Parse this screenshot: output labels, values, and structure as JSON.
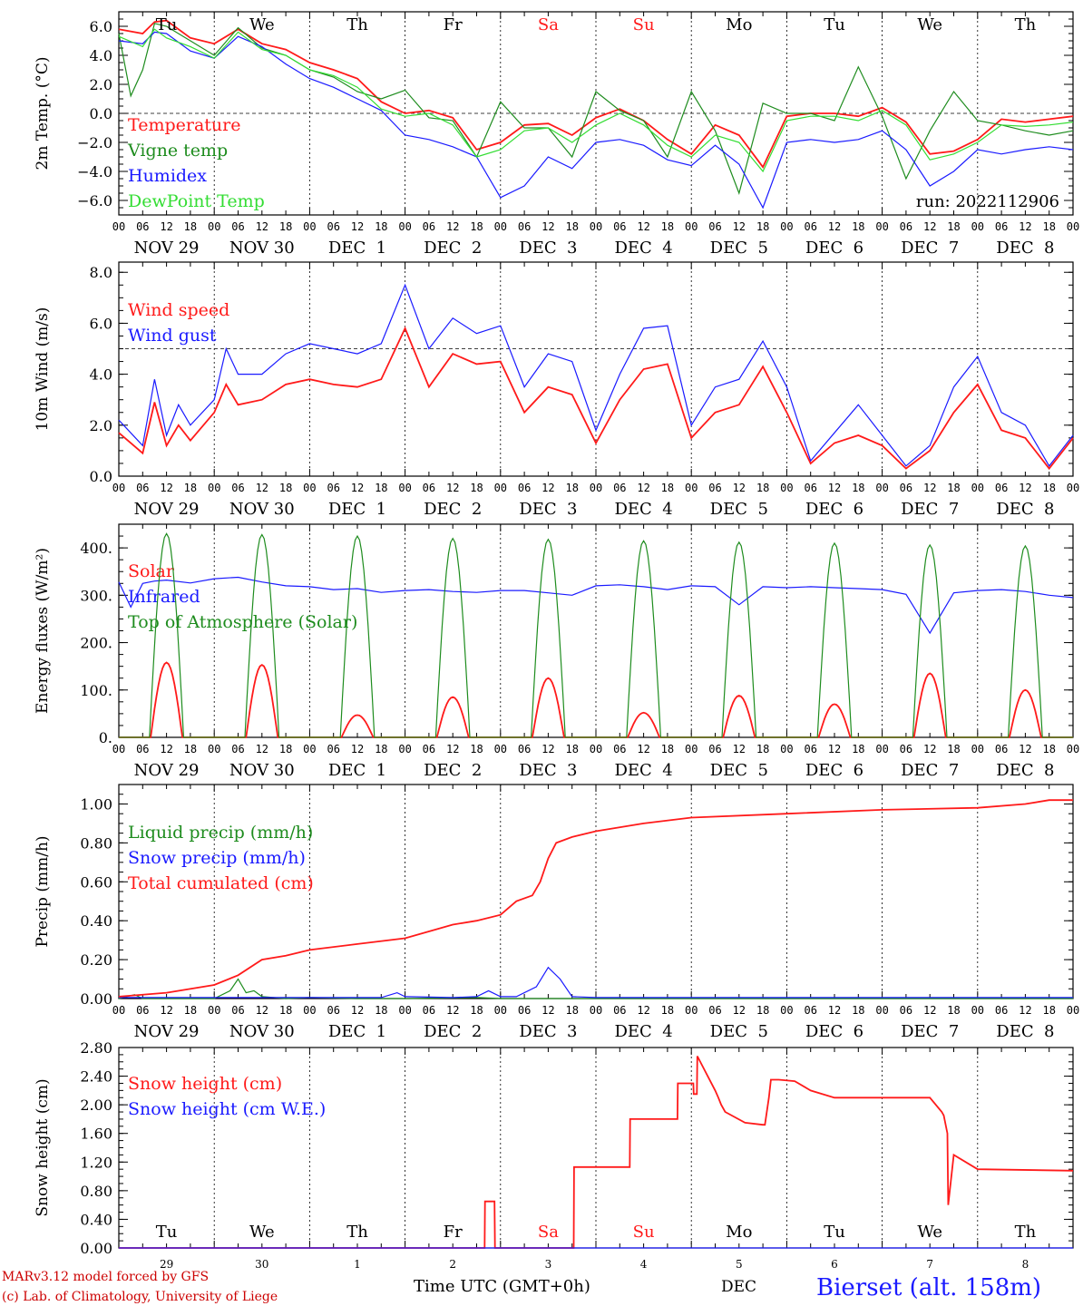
{
  "colors": {
    "red": "#ff1a1a",
    "green": "#1e8c1e",
    "blue": "#1a1aff",
    "lightgreen": "#33dd33",
    "darkred": "#cc0000",
    "axis": "#000000"
  },
  "days": {
    "top": [
      "Tu",
      "We",
      "Th",
      "Fr",
      "Sa",
      "Su",
      "Mo",
      "Tu",
      "We",
      "Th"
    ],
    "weekend": [
      false,
      false,
      false,
      false,
      true,
      true,
      false,
      false,
      false,
      false
    ],
    "dates": [
      "NOV 29",
      "NOV 30",
      "DEC  1",
      "DEC  2",
      "DEC  3",
      "DEC  4",
      "DEC  5",
      "DEC  6",
      "DEC  7",
      "DEC  8"
    ],
    "bottom_numbers": [
      "29",
      "30",
      "1",
      "2",
      "3",
      "4",
      "5",
      "6",
      "7",
      "8"
    ],
    "hour_ticks": [
      "00",
      "06",
      "12",
      "18"
    ],
    "final_tick": "00"
  },
  "footer": {
    "credit1": "MARv3.12 model forced by GFS",
    "credit2": "(c) Lab. of Climatology, University of Liege",
    "xlabel": "Time UTC (GMT+0h)",
    "month": "DEC",
    "station": "Bierset (alt. 158m)"
  },
  "chart_data": [
    {
      "id": "temp",
      "type": "line",
      "ylabel": "2m Temp. (°C)",
      "ylim": [
        -7,
        7
      ],
      "yticks": [
        "6.0",
        "4.0",
        "2.0",
        "0.0",
        "−2.0",
        "−4.0",
        "−6.0"
      ],
      "yticks_values": [
        6,
        4,
        2,
        0,
        -2,
        -4,
        -6
      ],
      "ref_line": 0,
      "run_label": "run: 2022112906",
      "x_unit": "hours since NOV 29 00 UTC",
      "series": [
        {
          "name": "Temperature",
          "color": "red",
          "x": [
            0,
            6,
            9,
            12,
            18,
            24,
            30,
            36,
            42,
            48,
            54,
            60,
            66,
            72,
            78,
            84,
            90,
            96,
            102,
            108,
            114,
            120,
            126,
            132,
            138,
            144,
            150,
            156,
            162,
            168,
            174,
            180,
            186,
            192,
            198,
            204,
            210,
            216,
            222,
            228,
            234,
            240
          ],
          "y": [
            5.8,
            5.5,
            6.3,
            6.4,
            5.2,
            4.8,
            5.8,
            4.8,
            4.4,
            3.5,
            3.0,
            2.4,
            0.8,
            0.0,
            0.2,
            -0.3,
            -2.5,
            -2.0,
            -0.8,
            -0.7,
            -1.5,
            -0.3,
            0.3,
            -0.5,
            -1.8,
            -2.8,
            -0.8,
            -1.5,
            -3.7,
            -0.2,
            0.0,
            0.0,
            -0.2,
            0.4,
            -0.6,
            -2.8,
            -2.6,
            -1.8,
            -0.4,
            -0.6,
            -0.4,
            -0.2
          ]
        },
        {
          "name": "Vigne temp",
          "color": "green",
          "x": [
            0,
            3,
            6,
            9,
            12,
            18,
            24,
            30,
            36,
            42,
            48,
            54,
            60,
            66,
            72,
            78,
            84,
            90,
            96,
            102,
            108,
            114,
            120,
            126,
            132,
            138,
            144,
            150,
            156,
            162,
            168,
            174,
            180,
            186,
            192,
            198,
            204,
            210,
            216,
            222,
            228,
            234,
            240
          ],
          "y": [
            5.5,
            1.2,
            3.0,
            6.2,
            6.0,
            5.0,
            4.0,
            5.9,
            4.5,
            4.0,
            3.0,
            2.5,
            1.5,
            1.0,
            1.6,
            -0.3,
            -0.5,
            -3.0,
            0.8,
            -1.0,
            -1.0,
            -3.0,
            1.5,
            0.2,
            -0.5,
            -3.0,
            1.5,
            -1.2,
            -5.5,
            0.7,
            0.0,
            0.0,
            -0.5,
            3.2,
            -0.2,
            -4.5,
            -1.2,
            1.5,
            -0.5,
            -0.8,
            -1.2,
            -1.5,
            -1.2
          ]
        },
        {
          "name": "Humidex",
          "color": "blue",
          "x": [
            0,
            6,
            9,
            12,
            18,
            24,
            30,
            36,
            42,
            48,
            54,
            60,
            66,
            72,
            78,
            84,
            90,
            96,
            102,
            108,
            114,
            120,
            126,
            132,
            138,
            144,
            150,
            156,
            162,
            168,
            174,
            180,
            186,
            192,
            198,
            204,
            210,
            216,
            222,
            228,
            234,
            240
          ],
          "y": [
            5.0,
            4.8,
            5.6,
            5.5,
            4.3,
            3.8,
            5.3,
            4.6,
            3.4,
            2.4,
            1.8,
            1.0,
            0.2,
            -1.5,
            -1.8,
            -2.3,
            -3.0,
            -5.8,
            -5.0,
            -3.0,
            -3.8,
            -2.0,
            -1.8,
            -2.2,
            -3.2,
            -3.6,
            -2.2,
            -3.5,
            -6.5,
            -2.0,
            -1.8,
            -2.0,
            -1.8,
            -1.2,
            -2.5,
            -5.0,
            -4.0,
            -2.5,
            -2.8,
            -2.5,
            -2.3,
            -2.5
          ]
        },
        {
          "name": "DewPoint Temp",
          "color": "lightgreen",
          "x": [
            0,
            6,
            9,
            12,
            18,
            24,
            30,
            36,
            42,
            48,
            54,
            60,
            66,
            72,
            78,
            84,
            90,
            96,
            102,
            108,
            114,
            120,
            126,
            132,
            138,
            144,
            150,
            156,
            162,
            168,
            174,
            180,
            186,
            192,
            198,
            204,
            210,
            216,
            222,
            228,
            234,
            240
          ],
          "y": [
            5.3,
            4.6,
            5.8,
            5.2,
            4.6,
            3.8,
            5.6,
            4.4,
            4.0,
            3.0,
            2.6,
            1.8,
            0.3,
            -0.2,
            0.0,
            -0.8,
            -3.0,
            -2.5,
            -1.2,
            -1.0,
            -2.0,
            -0.8,
            0.0,
            -0.8,
            -2.2,
            -3.0,
            -1.5,
            -2.0,
            -4.0,
            -0.5,
            -0.2,
            -0.2,
            -0.5,
            0.2,
            -0.8,
            -3.2,
            -2.8,
            -2.0,
            -0.8,
            -0.9,
            -0.8,
            -0.6
          ]
        }
      ]
    },
    {
      "id": "wind",
      "type": "line",
      "ylabel": "10m Wind (m/s)",
      "ylim": [
        0,
        8.4
      ],
      "yticks": [
        "8.0",
        "6.0",
        "4.0",
        "2.0",
        "0.0"
      ],
      "yticks_values": [
        8,
        6,
        4,
        2,
        0
      ],
      "ref_line": 5,
      "series": [
        {
          "name": "Wind speed",
          "color": "red",
          "x": [
            0,
            6,
            9,
            12,
            15,
            18,
            24,
            27,
            30,
            36,
            42,
            48,
            54,
            60,
            66,
            72,
            78,
            84,
            90,
            96,
            102,
            108,
            114,
            120,
            126,
            132,
            138,
            144,
            150,
            156,
            162,
            168,
            174,
            180,
            186,
            192,
            198,
            204,
            210,
            216,
            222,
            228,
            234,
            240
          ],
          "y": [
            1.7,
            0.9,
            2.9,
            1.2,
            2.0,
            1.4,
            2.5,
            3.6,
            2.8,
            3.0,
            3.6,
            3.8,
            3.6,
            3.5,
            3.8,
            5.8,
            3.5,
            4.8,
            4.4,
            4.5,
            2.5,
            3.5,
            3.2,
            1.3,
            3.0,
            4.2,
            4.4,
            1.5,
            2.5,
            2.8,
            4.3,
            2.5,
            0.5,
            1.3,
            1.6,
            1.2,
            0.3,
            1.0,
            2.5,
            3.6,
            1.8,
            1.5,
            0.3,
            1.5
          ]
        },
        {
          "name": "Wind gust",
          "color": "blue",
          "x": [
            0,
            6,
            9,
            12,
            15,
            18,
            24,
            27,
            30,
            36,
            42,
            48,
            54,
            60,
            66,
            72,
            78,
            84,
            90,
            96,
            102,
            108,
            114,
            120,
            126,
            132,
            138,
            144,
            150,
            156,
            162,
            168,
            174,
            180,
            186,
            192,
            198,
            204,
            210,
            216,
            222,
            228,
            234,
            240
          ],
          "y": [
            2.2,
            1.2,
            3.8,
            1.6,
            2.8,
            2.0,
            3.0,
            5.0,
            4.0,
            4.0,
            4.8,
            5.2,
            5.0,
            4.8,
            5.2,
            7.5,
            5.0,
            6.2,
            5.6,
            5.9,
            3.5,
            4.8,
            4.5,
            1.8,
            4.0,
            5.8,
            5.9,
            2.0,
            3.5,
            3.8,
            5.3,
            3.5,
            0.6,
            1.7,
            2.8,
            1.6,
            0.4,
            1.2,
            3.5,
            4.7,
            2.5,
            2.0,
            0.4,
            1.6
          ]
        }
      ]
    },
    {
      "id": "energy",
      "type": "line",
      "ylabel": "Energy fluxes (W/m²)",
      "ylim": [
        0,
        450
      ],
      "yticks": [
        "400.",
        "300.",
        "200.",
        "100.",
        "0."
      ],
      "yticks_values": [
        400,
        300,
        200,
        100,
        0
      ],
      "series": [
        {
          "name": "Solar",
          "color": "red",
          "daily_peaks": [
            158,
            153,
            47,
            85,
            125,
            52,
            88,
            70,
            135,
            100
          ],
          "peak_hour": 12,
          "half_width_hours": 4
        },
        {
          "name": "Infrared",
          "color": "blue",
          "x": [
            0,
            3,
            6,
            9,
            12,
            18,
            24,
            30,
            36,
            42,
            48,
            54,
            60,
            66,
            72,
            78,
            84,
            90,
            96,
            102,
            108,
            114,
            120,
            126,
            132,
            138,
            144,
            150,
            156,
            162,
            168,
            174,
            180,
            186,
            192,
            198,
            204,
            210,
            216,
            222,
            228,
            234,
            240
          ],
          "y": [
            328,
            275,
            325,
            330,
            332,
            326,
            335,
            338,
            328,
            320,
            318,
            312,
            314,
            306,
            310,
            312,
            308,
            306,
            310,
            310,
            305,
            300,
            320,
            322,
            318,
            312,
            320,
            318,
            280,
            318,
            316,
            318,
            316,
            314,
            312,
            302,
            220,
            305,
            310,
            312,
            308,
            300,
            295
          ]
        },
        {
          "name": "Top of Atmosphere (Solar)",
          "color": "green",
          "daily_peaks": [
            430,
            428,
            425,
            420,
            418,
            415,
            412,
            410,
            406,
            404
          ],
          "peak_hour": 12,
          "half_width_hours": 4.3
        }
      ]
    },
    {
      "id": "precip",
      "type": "line",
      "ylabel": "Precip (mm/h)",
      "ylim": [
        0,
        1.1
      ],
      "yticks": [
        "1.00",
        "0.80",
        "0.60",
        "0.40",
        "0.20",
        "0.00"
      ],
      "yticks_values": [
        1.0,
        0.8,
        0.6,
        0.4,
        0.2,
        0.0
      ],
      "series": [
        {
          "name": "Liquid precip (mm/h)",
          "color": "green",
          "x": [
            0,
            4,
            6,
            24,
            28,
            30,
            32,
            34,
            36,
            42,
            48,
            60,
            72,
            90,
            96,
            120,
            144,
            168,
            192,
            216,
            240
          ],
          "y": [
            0,
            0.02,
            0,
            0,
            0.04,
            0.1,
            0.03,
            0.04,
            0.01,
            0,
            0.005,
            0,
            0,
            0.005,
            0,
            0,
            0,
            0,
            0,
            0,
            0
          ]
        },
        {
          "name": "Snow precip (mm/h)",
          "color": "blue",
          "x": [
            0,
            24,
            48,
            66,
            70,
            72,
            84,
            90,
            93,
            96,
            100,
            105,
            108,
            111,
            114,
            120,
            144,
            168,
            192,
            216,
            240
          ],
          "y": [
            0.005,
            0.005,
            0.005,
            0.005,
            0.03,
            0.01,
            0.005,
            0.01,
            0.04,
            0.01,
            0.01,
            0.06,
            0.16,
            0.1,
            0.01,
            0.005,
            0.005,
            0.005,
            0.005,
            0.005,
            0.005
          ]
        },
        {
          "name": "Total cumulated (cm)",
          "color": "red",
          "x": [
            0,
            12,
            24,
            30,
            36,
            42,
            48,
            60,
            72,
            84,
            90,
            96,
            100,
            104,
            106,
            108,
            110,
            114,
            120,
            132,
            144,
            168,
            192,
            216,
            228,
            234,
            240
          ],
          "y": [
            0.01,
            0.03,
            0.07,
            0.12,
            0.2,
            0.22,
            0.25,
            0.28,
            0.31,
            0.38,
            0.4,
            0.43,
            0.5,
            0.53,
            0.6,
            0.72,
            0.8,
            0.83,
            0.86,
            0.9,
            0.93,
            0.95,
            0.97,
            0.98,
            1.0,
            1.02,
            1.02
          ]
        }
      ]
    },
    {
      "id": "snow",
      "type": "line",
      "ylabel": "Snow height (cm)",
      "ylim": [
        0,
        2.8
      ],
      "yticks": [
        "2.80",
        "2.40",
        "2.00",
        "1.60",
        "1.20",
        "0.80",
        "0.40",
        "0.00"
      ],
      "yticks_values": [
        2.8,
        2.4,
        2.0,
        1.6,
        1.2,
        0.8,
        0.4,
        0.0
      ],
      "series": [
        {
          "name": "Snow height (cm)",
          "color": "red",
          "x": [
            0,
            92,
            92.1,
            94.5,
            94.6,
            114.4,
            114.5,
            128.5,
            128.6,
            140.5,
            140.6,
            144.5,
            144.6,
            145.4,
            145.5,
            150,
            150.8,
            151.5,
            152.5,
            157.5,
            162,
            162.5,
            163.5,
            164,
            166,
            170,
            174,
            180,
            186,
            190,
            204,
            207,
            207.5,
            208.4,
            208.6,
            210,
            216,
            240
          ],
          "y": [
            0,
            0,
            0.65,
            0.65,
            0,
            0,
            1.13,
            1.13,
            1.8,
            1.8,
            2.3,
            2.3,
            2.15,
            2.15,
            2.68,
            2.2,
            2.1,
            2.0,
            1.9,
            1.75,
            1.72,
            1.72,
            2.1,
            2.35,
            2.35,
            2.33,
            2.2,
            2.1,
            2.1,
            2.1,
            2.1,
            1.9,
            1.85,
            1.6,
            0.6,
            1.3,
            1.1,
            1.08
          ]
        },
        {
          "name": "Snow height (cm W.E.)",
          "color": "blue",
          "x": [
            0,
            240
          ],
          "y": [
            0,
            0
          ]
        }
      ]
    }
  ]
}
